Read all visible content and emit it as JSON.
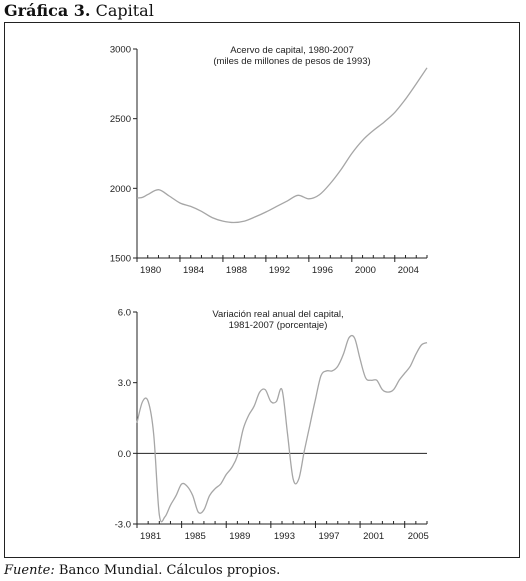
{
  "figure": {
    "label": "Gráfica 3.",
    "title": "Capital"
  },
  "source": {
    "label": "Fuente:",
    "text": "Banco Mundial. Cálculos propios."
  },
  "colors": {
    "line": "#a6a6a6",
    "axis": "#222222",
    "frame": "#222222"
  },
  "chart_data": [
    {
      "type": "line",
      "title": "Acervo de capital, 1980-2007",
      "subtitle": "(miles de millones de pesos de 1993)",
      "xlabel": "",
      "ylabel": "",
      "xlim": [
        1980,
        2007
      ],
      "ylim": [
        1500,
        3000
      ],
      "yticks": [
        1500,
        2000,
        2500,
        3000
      ],
      "ytick_labels": [
        "1500",
        "2000",
        "2500",
        "3000"
      ],
      "xticks": [
        1980,
        1984,
        1988,
        1992,
        1996,
        2000,
        2004
      ],
      "xtick_labels": [
        "1980",
        "1984",
        "1988",
        "1992",
        "1996",
        "2000",
        "2004"
      ],
      "grid": false,
      "legend": "none",
      "series": [
        {
          "x": [
            1980,
            1980.5,
            1981,
            1982,
            1983,
            1984,
            1985,
            1986,
            1987,
            1988,
            1989,
            1990,
            1991,
            1992,
            1993,
            1994,
            1995,
            1996,
            1997,
            1998,
            1999,
            2000,
            2001,
            2002,
            2003,
            2004,
            2005,
            2006,
            2007
          ],
          "values": [
            1930,
            1935,
            1955,
            1990,
            1945,
            1895,
            1870,
            1835,
            1790,
            1765,
            1755,
            1765,
            1795,
            1830,
            1870,
            1910,
            1950,
            1925,
            1955,
            2035,
            2135,
            2250,
            2345,
            2415,
            2475,
            2545,
            2640,
            2750,
            2865
          ]
        }
      ]
    },
    {
      "type": "line",
      "title": "Variación real anual del capital,",
      "subtitle": "1981-2007 (porcentaje)",
      "xlabel": "",
      "ylabel": "",
      "xlim": [
        1981,
        2007
      ],
      "ylim": [
        -3.0,
        6.0
      ],
      "yticks": [
        -3.0,
        0.0,
        3.0,
        6.0
      ],
      "ytick_labels": [
        "-3.0",
        "0.0",
        "3.0",
        "6.0"
      ],
      "xticks": [
        1981,
        1985,
        1989,
        1993,
        1997,
        2001,
        2005
      ],
      "xtick_labels": [
        "1981",
        "1985",
        "1989",
        "1993",
        "1997",
        "2001",
        "2005"
      ],
      "grid": false,
      "legend": "none",
      "series": [
        {
          "x": [
            1981,
            1981.5,
            1982,
            1982.5,
            1983,
            1983.5,
            1984,
            1984.5,
            1985,
            1985.5,
            1986,
            1986.5,
            1987,
            1987.5,
            1988,
            1988.5,
            1989,
            1989.5,
            1990,
            1990.5,
            1991,
            1991.5,
            1992,
            1992.5,
            1993,
            1993.5,
            1994,
            1994.5,
            1995,
            1995.5,
            1996,
            1996.5,
            1997,
            1997.5,
            1998,
            1998.5,
            1999,
            1999.5,
            2000,
            2000.5,
            2001,
            2001.5,
            2002,
            2002.5,
            2003,
            2003.5,
            2004,
            2004.5,
            2005,
            2005.5,
            2006,
            2006.5,
            2007
          ],
          "values": [
            1.3,
            2.2,
            2.2,
            0.8,
            -2.6,
            -2.7,
            -2.2,
            -1.8,
            -1.3,
            -1.4,
            -1.8,
            -2.5,
            -2.4,
            -1.8,
            -1.5,
            -1.3,
            -0.9,
            -0.6,
            -0.1,
            1.0,
            1.6,
            2.0,
            2.6,
            2.7,
            2.2,
            2.2,
            2.7,
            0.8,
            -1.1,
            -1.1,
            0.1,
            1.2,
            2.3,
            3.3,
            3.5,
            3.5,
            3.7,
            4.2,
            4.9,
            4.9,
            4.0,
            3.2,
            3.1,
            3.1,
            2.7,
            2.6,
            2.7,
            3.1,
            3.4,
            3.7,
            4.2,
            4.6,
            4.7
          ]
        }
      ]
    }
  ]
}
